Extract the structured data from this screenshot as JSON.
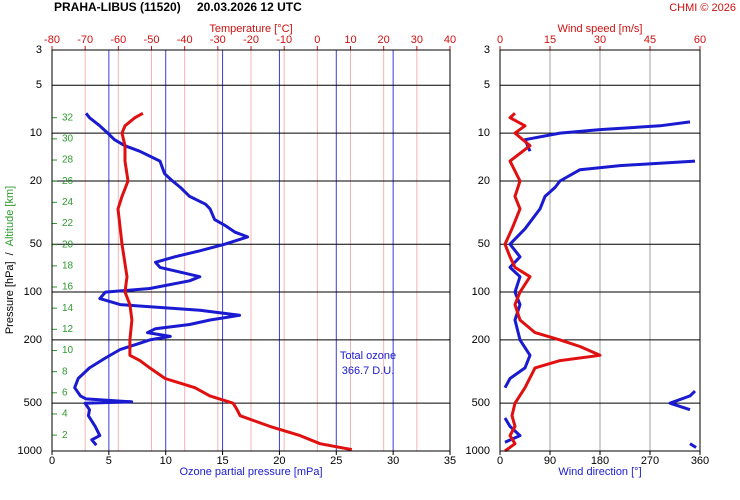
{
  "chart_data": [
    {
      "type": "line",
      "title": "PRAHA-LIBUS (11520)",
      "subtitle": "20.03.2026 12 UTC",
      "source": "CHMI © 2026",
      "ylabel": "Pressure [hPa]",
      "ylabel_separator": "/",
      "altitude_label": "Altitude [km]",
      "xlabel": "Ozone partial pressure [mPa]",
      "x2label": "Temperature [°C]",
      "log_y": true,
      "ylim": [
        1000,
        3
      ],
      "yticks": [
        3,
        5,
        10,
        20,
        50,
        100,
        200,
        500,
        1000
      ],
      "xlim": [
        0,
        35
      ],
      "xticks": [
        0,
        5,
        10,
        15,
        20,
        25,
        30,
        35
      ],
      "x_grid_color": "#3c3cdc",
      "x2lim": [
        -80,
        40
      ],
      "x2ticks": [
        -80,
        -70,
        -60,
        -50,
        -40,
        -30,
        -20,
        -10,
        0,
        10,
        20,
        30,
        40
      ],
      "x2_grid_color": "#f4b4b4",
      "altlim": [
        0.5,
        38.4
      ],
      "altticks": [
        2,
        4,
        6,
        8,
        10,
        12,
        14,
        16,
        18,
        20,
        22,
        24,
        26,
        28,
        30,
        32
      ],
      "altitude_color": "#2e9a2e",
      "annotation": [
        "Total ozone",
        "366.7 D.U."
      ],
      "annotation_color": "#1a1ad0",
      "series": [
        {
          "color": "#1a1ad0",
          "axis": "x",
          "pressure": [
            920,
            850,
            800,
            700,
            600,
            550,
            500,
            490,
            470,
            450,
            400,
            350,
            300,
            260,
            230,
            210,
            200,
            190,
            180,
            170,
            160,
            150,
            140,
            130,
            120,
            110,
            100,
            95,
            85,
            80,
            75,
            70,
            65,
            60,
            55,
            50,
            45,
            42,
            38,
            35,
            30,
            28,
            25,
            22,
            20,
            18,
            15,
            13,
            12,
            11,
            10,
            9,
            8,
            7.5
          ],
          "values": [
            3.9,
            3.5,
            4.2,
            3.8,
            3.2,
            3.3,
            2.9,
            7.0,
            3.0,
            2.5,
            2.0,
            2.3,
            3.3,
            4.7,
            6.0,
            7.7,
            8.6,
            10.4,
            8.4,
            9.1,
            12.1,
            13.9,
            16.5,
            13.0,
            6.0,
            4.2,
            4.7,
            8.6,
            12.1,
            13.0,
            11.3,
            9.5,
            9.1,
            10.8,
            13.0,
            15.2,
            17.2,
            16.1,
            15.2,
            14.3,
            13.9,
            13.5,
            12.1,
            11.3,
            10.6,
            9.9,
            9.5,
            7.7,
            6.4,
            5.5,
            4.9,
            4.2,
            3.3,
            3.0
          ]
        },
        {
          "color": "#e01010",
          "axis": "x2",
          "pressure": [
            980,
            900,
            800,
            700,
            600,
            550,
            500,
            450,
            400,
            350,
            300,
            270,
            250,
            200,
            150,
            120,
            100,
            80,
            50,
            30,
            25,
            20,
            15,
            12,
            10,
            9,
            8,
            7.5
          ],
          "values": [
            10.4,
            0.8,
            -5.2,
            -14.3,
            -23.3,
            -24.2,
            -25.4,
            -32.4,
            -36.9,
            -45.9,
            -50.5,
            -53.5,
            -56.5,
            -56.5,
            -55.9,
            -56.5,
            -58.0,
            -57.4,
            -58.9,
            -60.1,
            -58.9,
            -57.1,
            -58.0,
            -58.0,
            -58.9,
            -58.0,
            -55.0,
            -52.6
          ]
        }
      ]
    },
    {
      "type": "line",
      "xlabel": "Wind direction [°]",
      "x2label": "Wind speed [m/s]",
      "log_y": true,
      "ylim": [
        1000,
        3
      ],
      "yticks": [
        3,
        5,
        10,
        20,
        50,
        100,
        200,
        500,
        1000
      ],
      "xlim": [
        0,
        360
      ],
      "xticks": [
        0,
        90,
        180,
        270,
        360
      ],
      "x_grid_color": "#a0a0a0",
      "x2lim": [
        0,
        60
      ],
      "x2ticks": [
        0,
        15,
        30,
        45,
        60
      ],
      "series": [
        {
          "color": "#1a1ad0",
          "axis": "x",
          "pressure": [
            950,
            900,
            null,
            880,
            800,
            700,
            620,
            null,
            550,
            500,
            450,
            420,
            null,
            400,
            350,
            300,
            250,
            200,
            150,
            120,
            100,
            80,
            70,
            60,
            50,
            40,
            30,
            25,
            22,
            20,
            17,
            16,
            15,
            null,
            13,
            11,
            10,
            9.5,
            9,
            8.5
          ],
          "values": [
            353,
            342,
            null,
            9,
            36,
            18,
            9,
            null,
            342,
            306,
            342,
            351,
            null,
            9,
            18,
            45,
            54,
            36,
            27,
            36,
            27,
            36,
            18,
            36,
            18,
            45,
            72,
            81,
            99,
            108,
            144,
            216,
            351,
            null,
            54,
            45,
            108,
            180,
            288,
            342
          ]
        },
        {
          "color": "#e01010",
          "axis": "x2",
          "pressure": [
            1000,
            900,
            800,
            700,
            600,
            500,
            400,
            300,
            270,
            250,
            220,
            200,
            180,
            150,
            120,
            100,
            80,
            70,
            60,
            50,
            40,
            30,
            25,
            20,
            15,
            12,
            10,
            9,
            8,
            7.5
          ],
          "values": [
            1.5,
            4.5,
            3,
            4.5,
            3.6,
            4.5,
            7.5,
            10.5,
            18,
            30,
            24,
            18,
            10.5,
            6,
            4.5,
            6,
            9,
            4.5,
            3,
            1.5,
            3.6,
            6,
            4.5,
            6,
            3,
            9,
            4.5,
            7.5,
            3,
            4.5
          ]
        }
      ]
    }
  ]
}
